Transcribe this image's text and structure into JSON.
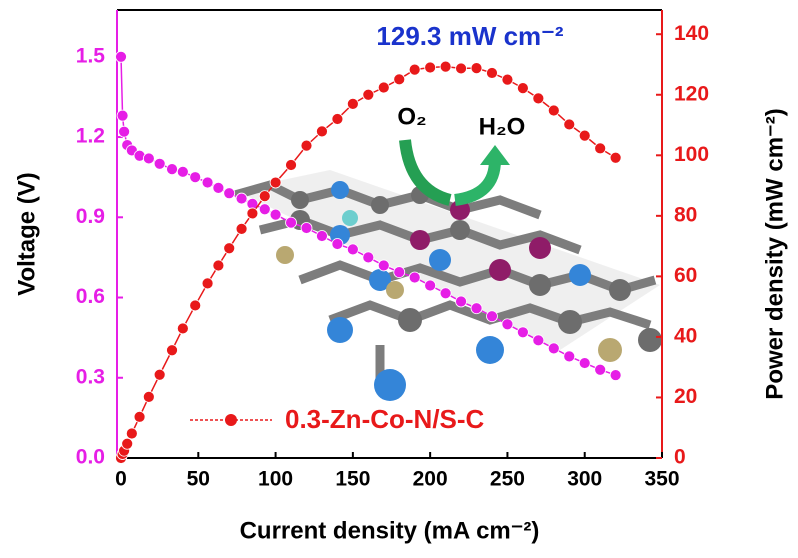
{
  "chart_data": {
    "type": "line",
    "x_label": "Current density (mA cm⁻²)",
    "y_label": "Voltage (V)",
    "y2_label": "Power density (mW cm⁻²)",
    "annotations": [
      "129.3 mW cm⁻²",
      "O₂",
      "H₂O"
    ],
    "x": [
      0,
      1,
      2,
      4,
      7,
      12,
      18,
      25,
      33,
      40,
      48,
      56,
      63,
      70,
      78,
      85,
      93,
      100,
      110,
      120,
      130,
      140,
      150,
      160,
      170,
      180,
      190,
      200,
      210,
      220,
      230,
      240,
      250,
      260,
      270,
      280,
      290,
      300,
      310,
      320
    ],
    "series": [
      {
        "color": "#e61ee6",
        "axis": "y",
        "values": [
          1.5,
          1.28,
          1.22,
          1.17,
          1.15,
          1.13,
          1.12,
          1.1,
          1.08,
          1.07,
          1.05,
          1.03,
          1.01,
          0.99,
          0.97,
          0.95,
          0.93,
          0.91,
          0.88,
          0.86,
          0.83,
          0.8,
          0.78,
          0.75,
          0.72,
          0.695,
          0.675,
          0.645,
          0.616,
          0.585,
          0.56,
          0.53,
          0.5,
          0.47,
          0.44,
          0.41,
          0.38,
          0.355,
          0.33,
          0.31
        ]
      },
      {
        "name": "0.3-Zn-Co-N/S-C",
        "color": "#e8191a",
        "axis": "y2",
        "values": [
          0,
          1.3,
          2.4,
          4.7,
          8.1,
          13.6,
          20.2,
          27.5,
          35.6,
          42.8,
          50.4,
          57.7,
          63.6,
          69.3,
          75.7,
          80.8,
          86.5,
          91,
          96.8,
          103.2,
          107.9,
          112,
          117,
          120,
          122.4,
          125.1,
          128.3,
          129,
          129.3,
          128.7,
          128.8,
          127.2,
          125,
          122.2,
          118.8,
          114.8,
          110.2,
          106.5,
          102.3,
          99.2
        ]
      }
    ],
    "xlim": [
      -2.6,
      350
    ],
    "xticks": [
      0,
      50,
      100,
      150,
      200,
      250,
      300,
      350
    ],
    "ylim": [
      0,
      1.675
    ],
    "yticks": [
      {
        "value": 0,
        "label": "0.0"
      },
      0.3,
      0.6,
      0.9,
      1.2,
      1.5
    ],
    "y2lim": [
      0,
      148
    ],
    "y2ticks": [
      0,
      20,
      40,
      60,
      80,
      100,
      120,
      140
    ],
    "y_axis_color": "#e61ee6",
    "y2_axis_color": "#e8191a",
    "annotation_color": "#1a33cc"
  }
}
